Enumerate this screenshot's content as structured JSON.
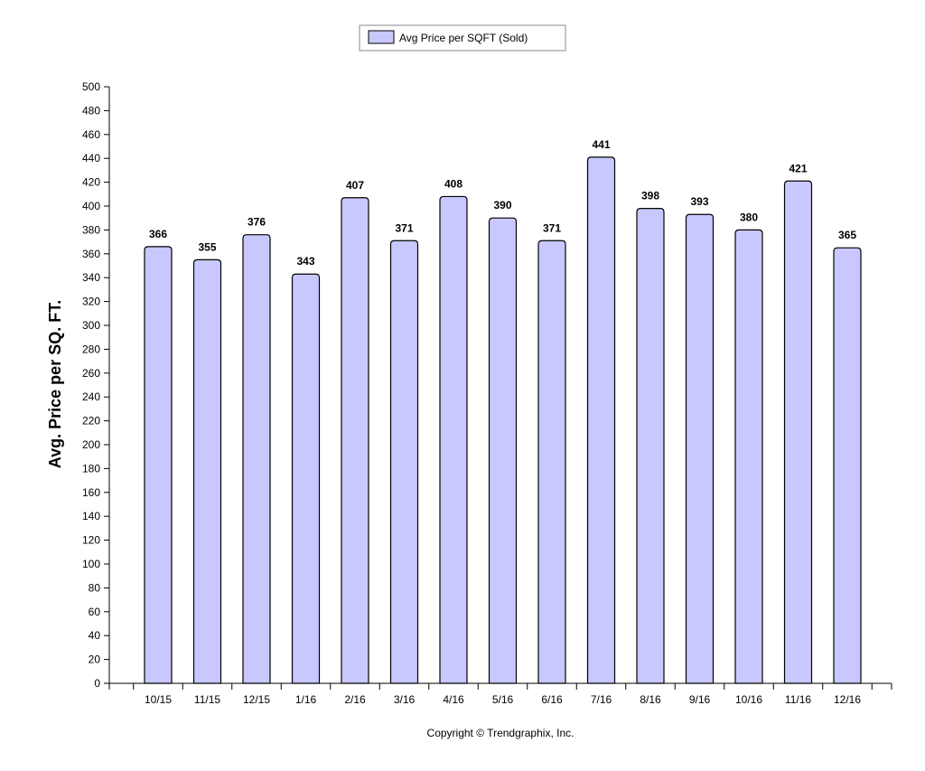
{
  "chart_data": {
    "type": "bar",
    "categories": [
      "10/15",
      "11/15",
      "12/15",
      "1/16",
      "2/16",
      "3/16",
      "4/16",
      "5/16",
      "6/16",
      "7/16",
      "8/16",
      "9/16",
      "10/16",
      "11/16",
      "12/16"
    ],
    "series": [
      {
        "name": "Avg Price per SQFT (Sold)",
        "values": [
          366,
          355,
          376,
          343,
          407,
          371,
          408,
          390,
          371,
          441,
          398,
          393,
          380,
          421,
          365
        ]
      }
    ],
    "ylabel": "Avg. Price per SQ. FT.",
    "xlabel": "",
    "ylim": [
      0,
      500
    ],
    "ytick_step": 20,
    "grid": false,
    "legend_position": "top-center",
    "bar_color": "#c8c8ff",
    "bar_edge_color": "#000000"
  },
  "footer": {
    "copyright": "Copyright © Trendgraphix, Inc."
  }
}
